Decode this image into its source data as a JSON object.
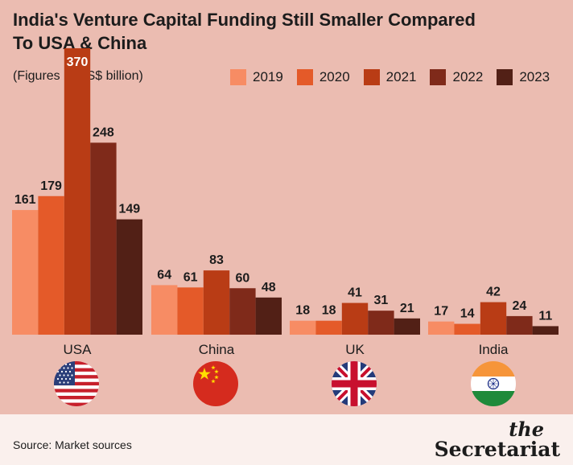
{
  "title": "India's Venture Capital Funding Still Smaller Compared To USA & China",
  "subtitle": "(Figures in US$ billion)",
  "source": "Source: Market sources",
  "brand": {
    "the": "the",
    "name": "Secretariat"
  },
  "colors": {
    "background": "#ebbcb1",
    "footer": "#faf0ed",
    "2019": "#f78c64",
    "2020": "#e45a29",
    "2021": "#b93c15",
    "2022": "#7f2a1a",
    "2023": "#522016"
  },
  "chart_data": {
    "type": "bar",
    "categories": [
      "USA",
      "China",
      "UK",
      "India"
    ],
    "series": [
      {
        "name": "2019",
        "values": [
          161,
          64,
          18,
          17
        ]
      },
      {
        "name": "2020",
        "values": [
          179,
          61,
          18,
          14
        ]
      },
      {
        "name": "2021",
        "values": [
          370,
          83,
          41,
          42
        ]
      },
      {
        "name": "2022",
        "values": [
          248,
          60,
          31,
          24
        ]
      },
      {
        "name": "2023",
        "values": [
          149,
          48,
          21,
          11
        ]
      }
    ],
    "data_labels": true,
    "legend": "top-right",
    "grid": false,
    "category_flags": [
      "usa-flag-icon",
      "china-flag-icon",
      "uk-flag-icon",
      "india-flag-icon"
    ]
  }
}
